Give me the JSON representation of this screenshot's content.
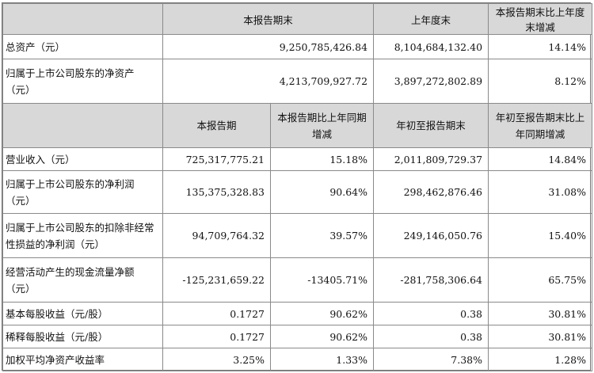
{
  "section_a": {
    "headers": [
      "本报告期末",
      "上年度末",
      "本报告期末比上年度末增减"
    ],
    "rows": [
      {
        "label": "总资产（元）",
        "values": [
          "9,250,785,426.84",
          "8,104,684,132.40",
          "14.14%"
        ]
      },
      {
        "label": "归属于上市公司股东的净资产（元）",
        "values": [
          "4,213,709,927.72",
          "3,897,272,802.89",
          "8.12%"
        ]
      }
    ]
  },
  "section_b": {
    "headers": [
      "本报告期",
      "本报告期比上年同期增减",
      "年初至报告期末",
      "年初至报告期末比上年同期增减"
    ],
    "rows": [
      {
        "label": "营业收入（元）",
        "values": [
          "725,317,775.21",
          "15.18%",
          "2,011,809,729.37",
          "14.84%"
        ]
      },
      {
        "label": "归属于上市公司股东的净利润（元）",
        "values": [
          "135,375,328.83",
          "90.64%",
          "298,462,876.46",
          "31.08%"
        ]
      },
      {
        "label": "归属于上市公司股东的扣除非经常性损益的净利润（元）",
        "values": [
          "94,709,764.32",
          "39.57%",
          "249,146,050.76",
          "15.40%"
        ]
      },
      {
        "label": "经营活动产生的现金流量净额（元）",
        "values": [
          "-125,231,659.22",
          "-13405.71%",
          "-281,758,306.64",
          "65.75%"
        ]
      },
      {
        "label": "基本每股收益（元/股）",
        "values": [
          "0.1727",
          "90.62%",
          "0.38",
          "30.81%"
        ]
      },
      {
        "label": "稀释每股收益（元/股）",
        "values": [
          "0.1727",
          "90.62%",
          "0.38",
          "30.81%"
        ]
      },
      {
        "label": "加权平均净资产收益率",
        "values": [
          "3.25%",
          "1.33%",
          "7.38%",
          "1.28%"
        ]
      }
    ]
  }
}
